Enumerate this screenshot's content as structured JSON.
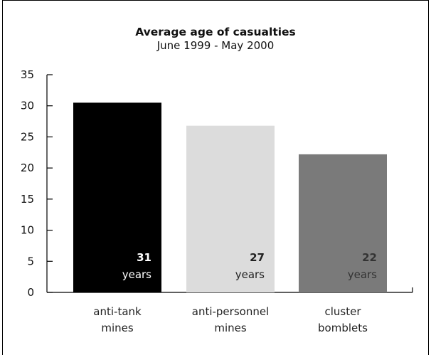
{
  "chart_data": {
    "type": "bar",
    "title": "Average age of casualties",
    "subtitle": "June 1999 - May 2000",
    "categories": [
      [
        "anti-tank",
        "mines"
      ],
      [
        "anti-personnel",
        "mines"
      ],
      [
        "cluster",
        "bomblets"
      ]
    ],
    "values": [
      30.5,
      26.8,
      22.2
    ],
    "data_labels": [
      [
        "31",
        "years"
      ],
      [
        "27",
        "years"
      ],
      [
        "22",
        "years"
      ]
    ],
    "colors": [
      "#000000",
      "#dcdcdc",
      "#7a7a7a"
    ],
    "label_colors": [
      "#ffffff",
      "#222222",
      "#333333"
    ],
    "yticks": [
      "0",
      "5",
      "10",
      "15",
      "20",
      "25",
      "30",
      "35"
    ],
    "ylim": [
      0,
      35
    ],
    "grid": false
  }
}
